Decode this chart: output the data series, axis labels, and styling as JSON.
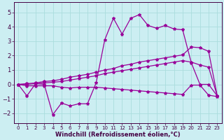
{
  "xlabel": "Windchill (Refroidissement éolien,°C)",
  "bg_color": "#cceef2",
  "line_color": "#990099",
  "grid_color": "#aadddd",
  "text_color": "#440044",
  "xlim": [
    -0.5,
    23.5
  ],
  "ylim": [
    -2.7,
    5.7
  ],
  "yticks": [
    -2,
    -1,
    0,
    1,
    2,
    3,
    4,
    5
  ],
  "xticks": [
    0,
    1,
    2,
    3,
    4,
    5,
    6,
    7,
    8,
    9,
    10,
    11,
    12,
    13,
    14,
    15,
    16,
    17,
    18,
    19,
    20,
    21,
    22,
    23
  ],
  "y_jagged": [
    0,
    -0.8,
    0.05,
    0.0,
    -2.1,
    -1.3,
    -1.5,
    -1.35,
    -1.35,
    0.1,
    3.1,
    4.6,
    3.5,
    4.6,
    4.85,
    4.1,
    3.9,
    4.1,
    3.85,
    3.8,
    1.5,
    0.0,
    0.0,
    -0.8
  ],
  "y_upper": [
    0.0,
    0.05,
    0.1,
    0.2,
    0.25,
    0.35,
    0.5,
    0.6,
    0.7,
    0.85,
    1.0,
    1.1,
    1.3,
    1.4,
    1.55,
    1.65,
    1.75,
    1.85,
    1.95,
    2.05,
    2.6,
    2.55,
    2.3,
    -0.8
  ],
  "y_mid": [
    0.0,
    0.0,
    0.05,
    0.1,
    0.15,
    0.2,
    0.3,
    0.4,
    0.5,
    0.6,
    0.75,
    0.85,
    0.95,
    1.05,
    1.15,
    1.25,
    1.35,
    1.45,
    1.55,
    1.65,
    1.55,
    1.35,
    1.2,
    -0.8
  ],
  "y_lower": [
    0.0,
    -0.1,
    -0.1,
    -0.1,
    -0.1,
    -0.2,
    -0.25,
    -0.2,
    -0.2,
    -0.2,
    -0.25,
    -0.3,
    -0.35,
    -0.4,
    -0.45,
    -0.5,
    -0.55,
    -0.6,
    -0.65,
    -0.7,
    -0.05,
    -0.05,
    -0.75,
    -0.85
  ]
}
